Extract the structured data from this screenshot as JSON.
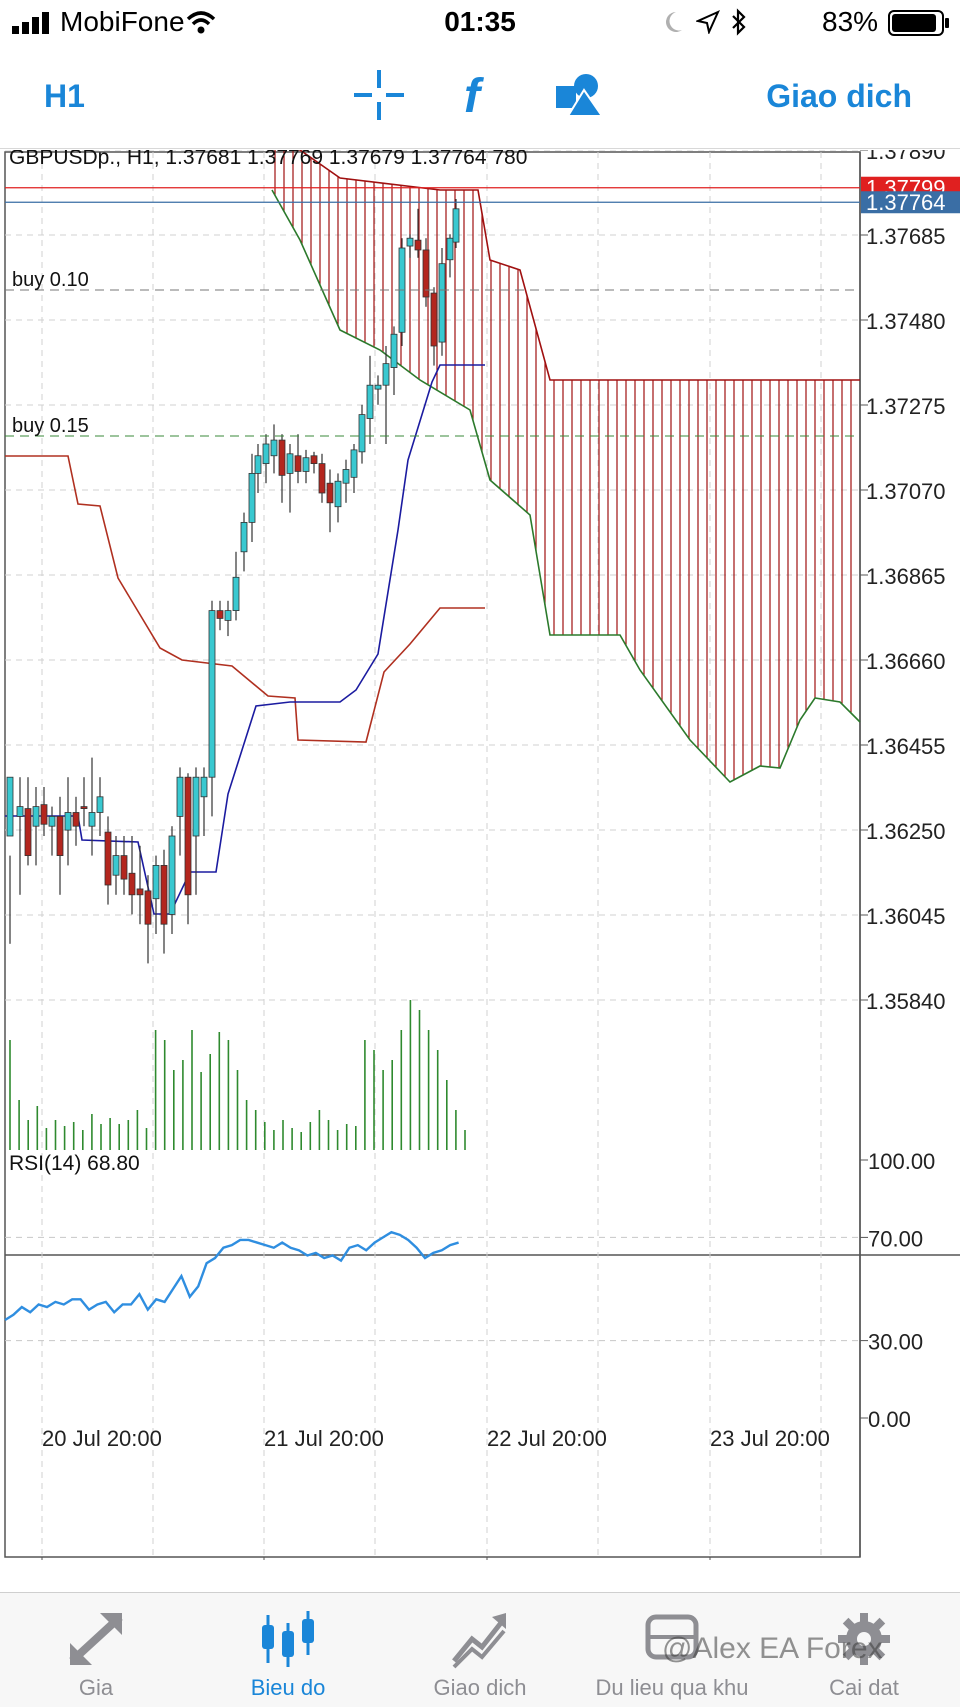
{
  "status_bar": {
    "carrier": "MobiFone",
    "time": "01:35",
    "battery_percent": "83%"
  },
  "toolbar": {
    "timeframe": "H1",
    "trade_label": "Giao dich",
    "crosshair_icon": "crosshair-icon",
    "indicator_icon": "function-f-icon",
    "objects_icon": "shapes-icon"
  },
  "chart": {
    "info_line": "GBPUSDp., H1, 1.37681 1.37769 1.37679 1.37764 780",
    "price_ticks": [
      "1.37890",
      "1.37685",
      "1.37480",
      "1.37275",
      "1.37070",
      "1.36865",
      "1.36660",
      "1.36455",
      "1.36250",
      "1.36045",
      "1.35840"
    ],
    "price_tags": [
      {
        "value": "1.37799",
        "color": "#e02020"
      },
      {
        "value": "1.37764",
        "color": "#3a6ea5"
      }
    ],
    "order_labels": [
      "buy 0.10",
      "buy 0.15"
    ],
    "date_labels": [
      "20 Jul 20:00",
      "21 Jul 20:00",
      "22 Jul 20:00",
      "23 Jul 20:00"
    ],
    "rsi_label": "RSI(14) 68.80",
    "rsi_ticks": [
      "100.00",
      "70.00",
      "30.00",
      "0.00"
    ],
    "colors": {
      "bull": "#39c8d0",
      "bear": "#b3261e",
      "cloud": "#a01010",
      "senkou_b": "#a01010",
      "senkou_a": "#2c7a2c",
      "tenkan": "#1b1ba0",
      "kijun": "#b03020",
      "volume": "#2f8a2f",
      "rsi": "#2f8ee0"
    }
  },
  "tabs": [
    {
      "label": "Gia",
      "icon": "quotes-arrows-icon",
      "active": false
    },
    {
      "label": "Bieu do",
      "icon": "candlestick-chart-icon",
      "active": true
    },
    {
      "label": "Giao dich",
      "icon": "trade-chart-icon",
      "active": false
    },
    {
      "label": "Du lieu qua khu",
      "icon": "history-icon",
      "active": false
    },
    {
      "label": "Cai dat",
      "icon": "gear-icon",
      "active": false
    }
  ],
  "watermark": "@Alex EA Forex"
}
